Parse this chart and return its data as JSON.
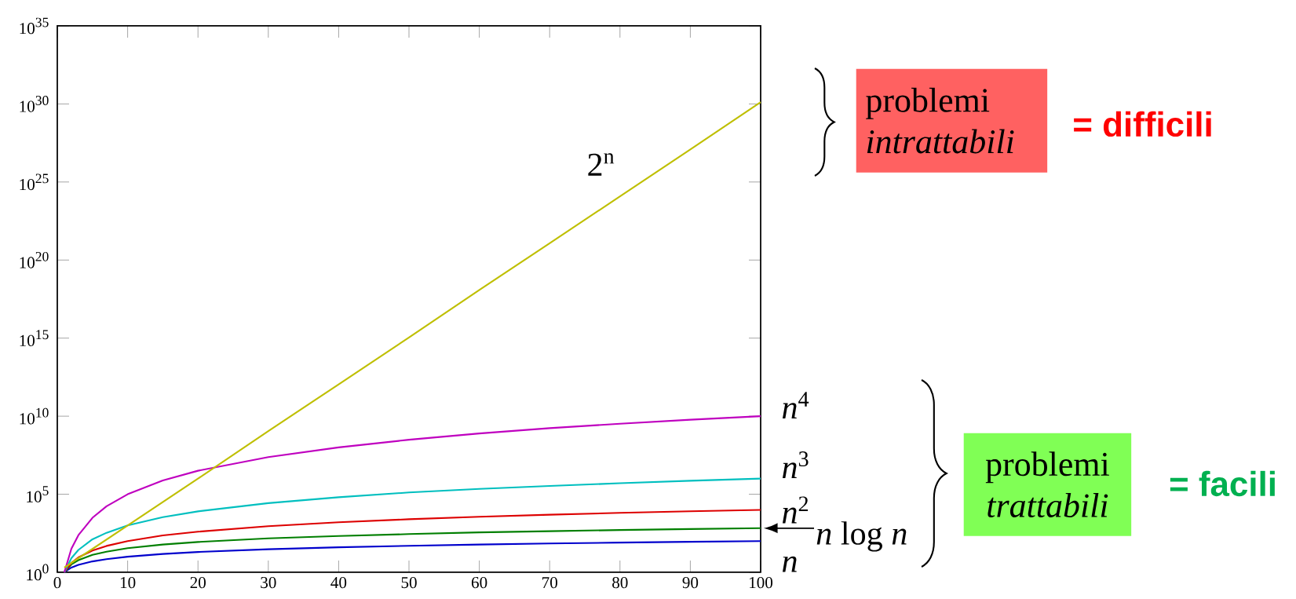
{
  "chart_data": {
    "type": "line",
    "log": "y",
    "marker": "none",
    "legend": false,
    "xlim": [
      0,
      100
    ],
    "ylim": [
      1,
      1e+35
    ],
    "xticks": [
      0,
      10,
      20,
      30,
      40,
      50,
      60,
      70,
      80,
      90,
      100
    ],
    "yticks": [
      {
        "value": 1,
        "label": "10$^{0}$"
      },
      {
        "value": 100000.0,
        "label": "10$^{5}$"
      },
      {
        "value": 10000000000.0,
        "label": "10$^{10}$"
      },
      {
        "value": 1000000000000000.0,
        "label": "10$^{15}$"
      },
      {
        "value": 1e+20,
        "label": "10$^{20}$"
      },
      {
        "value": 1e+25,
        "label": "10$^{25}$"
      },
      {
        "value": 1e+30,
        "label": "10$^{30}$"
      },
      {
        "value": 1e+35,
        "label": "10$^{35}$"
      }
    ],
    "x": [
      1,
      2,
      3,
      5,
      7,
      10,
      15,
      20,
      30,
      40,
      50,
      60,
      70,
      80,
      90,
      100
    ],
    "series": [
      {
        "name": "*n*",
        "color": "#0000cc",
        "values": [
          1,
          2,
          3,
          5,
          7,
          10,
          15,
          20,
          30,
          40,
          50,
          60,
          70,
          80,
          90,
          100
        ]
      },
      {
        "name": "*n* log *n*",
        "color": "#007f00",
        "values": [
          1,
          3.2,
          6,
          13,
          21,
          35,
          60,
          88,
          150,
          210,
          280,
          360,
          430,
          510,
          590,
          670
        ]
      },
      {
        "name": "*n*$^{2}$",
        "color": "#dd0000",
        "values": [
          1,
          4,
          9,
          25,
          49,
          100,
          230,
          400,
          900,
          1600,
          2500,
          3600,
          4900,
          6400,
          8100,
          10000
        ]
      },
      {
        "name": "*n*$^{3}$",
        "color": "#00bfbf",
        "values": [
          1,
          8,
          27,
          130,
          340,
          1000,
          3400,
          8000,
          27000,
          64000,
          130000,
          220000,
          340000,
          510000,
          730000,
          1000000
        ]
      },
      {
        "name": "*n*$^{4}$",
        "color": "#bf00bf",
        "values": [
          1,
          32,
          240,
          3100,
          17000,
          100000,
          760000,
          3200000,
          24000000,
          100000000,
          310000000,
          780000000,
          1700000000,
          3300000000,
          5900000000,
          10000000000
        ]
      },
      {
        "name": "2$^{n}$",
        "color": "#bfbf00",
        "x": [
          1,
          10,
          20,
          30,
          40,
          50,
          60,
          70,
          80,
          90,
          100
        ],
        "values": [
          2,
          1000,
          1000000.0,
          1100000000.0,
          1100000000000.0,
          1100000000000000.0,
          1.2e+18,
          1.2e+21,
          1.2e+24,
          1.2e+27,
          1.3e+30
        ]
      }
    ],
    "annotations": [
      "problemi *intrattabili*",
      "= difficili",
      "problemi *trattabili*",
      "= facili"
    ]
  }
}
